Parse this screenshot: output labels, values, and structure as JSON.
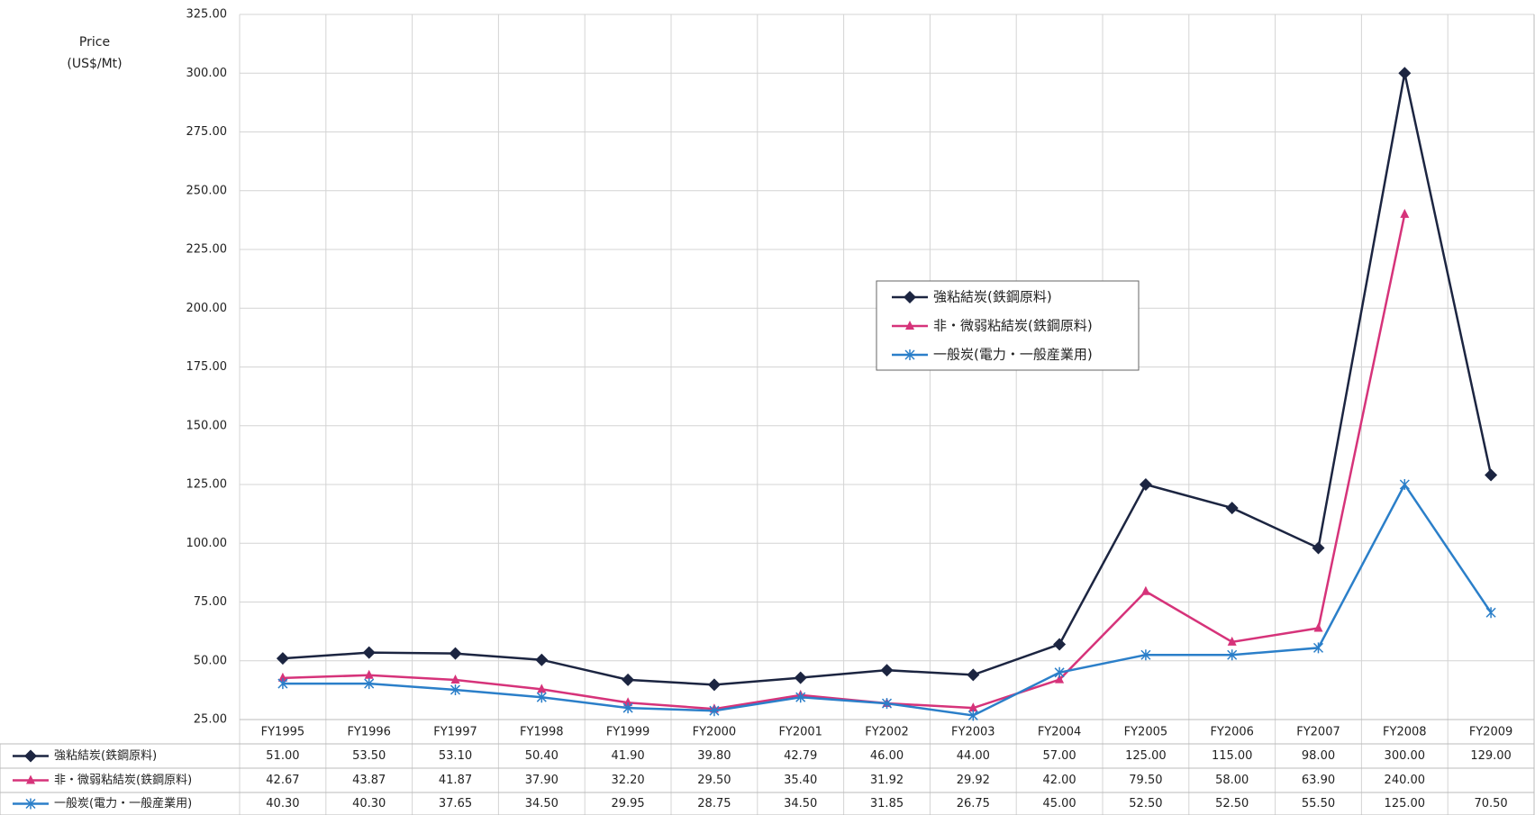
{
  "chart_data": {
    "type": "line",
    "y_label": [
      "Price",
      "(US$/Mt)"
    ],
    "categories": [
      "FY1995",
      "FY1996",
      "FY1997",
      "FY1998",
      "FY1999",
      "FY2000",
      "FY2001",
      "FY2002",
      "FY2003",
      "FY2004",
      "FY2005",
      "FY2006",
      "FY2007",
      "FY2008",
      "FY2009"
    ],
    "series": [
      {
        "name": "強粘結炭(鉄鋼原料)",
        "color": "#1c2541",
        "marker": "diamond",
        "values": [
          51,
          53.5,
          53.1,
          50.4,
          41.9,
          39.8,
          42.79,
          46,
          44,
          57,
          125,
          115,
          98,
          300,
          129
        ],
        "value_labels": [
          "51.00",
          "53.50",
          "53.10",
          "50.40",
          "41.90",
          "39.80",
          "42.79",
          "46.00",
          "44.00",
          "57.00",
          "125.00",
          "115.00",
          "98.00",
          "300.00",
          "129.00"
        ]
      },
      {
        "name": "非・微弱粘結炭(鉄鋼原料)",
        "color": "#d6337a",
        "marker": "triangle",
        "values": [
          42.67,
          43.87,
          41.87,
          37.9,
          32.2,
          29.5,
          35.4,
          31.92,
          29.92,
          42,
          79.5,
          58,
          63.9,
          240,
          null
        ],
        "value_labels": [
          "42.67",
          "43.87",
          "41.87",
          "37.90",
          "32.20",
          "29.50",
          "35.40",
          "31.92",
          "29.92",
          "42.00",
          "79.50",
          "58.00",
          "63.90",
          "240.00",
          null
        ]
      },
      {
        "name": "一般炭(電力・一般産業用)",
        "color": "#2b7fc9",
        "marker": "x",
        "values": [
          40.3,
          40.3,
          37.65,
          34.5,
          29.95,
          28.75,
          34.5,
          31.85,
          26.75,
          45,
          52.5,
          52.5,
          55.5,
          125,
          70.5
        ],
        "value_labels": [
          "40.30",
          "40.30",
          "37.65",
          "34.50",
          "29.95",
          "28.75",
          "34.50",
          "31.85",
          "26.75",
          "45.00",
          "52.50",
          "52.50",
          "55.50",
          "125.00",
          "70.50"
        ]
      }
    ],
    "ylim": [
      25,
      325
    ],
    "yticks": [
      {
        "value": 25,
        "label": "25.00"
      },
      {
        "value": 50,
        "label": "50.00"
      },
      {
        "value": 75,
        "label": "75.00"
      },
      {
        "value": 100,
        "label": "100.00"
      },
      {
        "value": 125,
        "label": "125.00"
      },
      {
        "value": 150,
        "label": "150.00"
      },
      {
        "value": 175,
        "label": "175.00"
      },
      {
        "value": 200,
        "label": "200.00"
      },
      {
        "value": 225,
        "label": "225.00"
      },
      {
        "value": 250,
        "label": "250.00"
      },
      {
        "value": 275,
        "label": "275.00"
      },
      {
        "value": 300,
        "label": "300.00"
      },
      {
        "value": 325,
        "label": "325.00"
      }
    ],
    "grid": true
  }
}
